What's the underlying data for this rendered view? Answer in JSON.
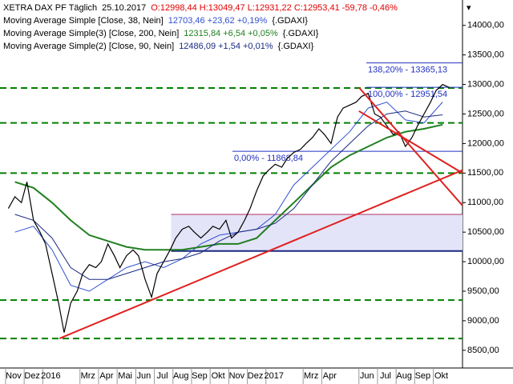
{
  "chart_data": {
    "type": "line",
    "title": "XETRA DAX PF Täglich",
    "date": "25.10.2017",
    "quote": "O:12998,44 H:13049,47 L:12931,22 C:12953,41 -59,78 -0,46%",
    "quote_color": "#e00000",
    "xlim": [
      -0.3,
      24.57
    ],
    "xticks": [
      {
        "value": 0,
        "label": "Nov"
      },
      {
        "value": 1,
        "label": "Dez"
      },
      {
        "value": 2,
        "label": "2016"
      },
      {
        "value": 4,
        "label": "Mrz"
      },
      {
        "value": 5,
        "label": "Apr"
      },
      {
        "value": 6,
        "label": "Mai"
      },
      {
        "value": 7,
        "label": "Jun"
      },
      {
        "value": 8,
        "label": "Jul"
      },
      {
        "value": 9,
        "label": "Aug"
      },
      {
        "value": 10,
        "label": "Sep"
      },
      {
        "value": 11,
        "label": "Okt"
      },
      {
        "value": 12,
        "label": "Nov"
      },
      {
        "value": 13,
        "label": "Dez"
      },
      {
        "value": 14,
        "label": "2017"
      },
      {
        "value": 16,
        "label": "Mrz"
      },
      {
        "value": 17,
        "label": "Apr"
      },
      {
        "value": 19,
        "label": "Jun"
      },
      {
        "value": 20,
        "label": "Jul"
      },
      {
        "value": 21,
        "label": "Aug"
      },
      {
        "value": 22,
        "label": "Sep"
      },
      {
        "value": 23,
        "label": "Okt"
      }
    ],
    "ylim": [
      8200,
      14430
    ],
    "yticks": [
      {
        "value": 8500,
        "label": "8500,00"
      },
      {
        "value": 9000,
        "label": "9000,00"
      },
      {
        "value": 9500,
        "label": "9500,00"
      },
      {
        "value": 10000,
        "label": "10000,00"
      },
      {
        "value": 10500,
        "label": "10500,00"
      },
      {
        "value": 11000,
        "label": "11000,00"
      },
      {
        "value": 11500,
        "label": "11500,00"
      },
      {
        "value": 12000,
        "label": "12000,00"
      },
      {
        "value": 12500,
        "label": "12500,00"
      },
      {
        "value": 13000,
        "label": "13000,00"
      },
      {
        "value": 13500,
        "label": "13500,00"
      },
      {
        "value": 14000,
        "label": "14000,00"
      }
    ],
    "price": {
      "color": "#000000",
      "x": [
        0.15,
        0.5,
        0.85,
        1.15,
        1.5,
        1.85,
        2.15,
        2.5,
        2.85,
        3.15,
        3.5,
        3.85,
        4.15,
        4.5,
        4.85,
        5.15,
        5.5,
        5.85,
        6.15,
        6.5,
        6.85,
        7.15,
        7.5,
        7.85,
        8.15,
        8.5,
        8.85,
        9.15,
        9.5,
        9.85,
        10.15,
        10.5,
        10.85,
        11.15,
        11.5,
        11.85,
        12.15,
        12.5,
        12.85,
        13.15,
        13.5,
        13.85,
        14.15,
        14.5,
        14.85,
        15.15,
        15.5,
        15.85,
        16.15,
        16.5,
        16.85,
        17.15,
        17.5,
        17.85,
        18.15,
        18.5,
        18.85,
        19.15,
        19.5,
        19.85,
        20.15,
        20.5,
        20.85,
        21.15,
        21.5,
        21.85,
        22.15,
        22.5,
        22.85,
        23.15,
        23.5,
        23.85
      ],
      "values": [
        10900,
        11100,
        11000,
        11350,
        10700,
        10500,
        10300,
        9800,
        9300,
        8800,
        9300,
        9500,
        9800,
        9950,
        9900,
        10000,
        10300,
        10100,
        9900,
        10100,
        10200,
        10100,
        9700,
        9400,
        9800,
        10000,
        10200,
        10400,
        10550,
        10600,
        10500,
        10400,
        10500,
        10600,
        10550,
        10700,
        10400,
        10500,
        10700,
        10900,
        11200,
        11450,
        11550,
        11650,
        11600,
        11750,
        11850,
        11900,
        12000,
        12100,
        12250,
        12150,
        12000,
        12450,
        12600,
        12650,
        12700,
        12800,
        12850,
        12500,
        12450,
        12300,
        12150,
        12200,
        11950,
        12100,
        12300,
        12500,
        12700,
        12900,
        13000,
        12950
      ]
    },
    "ma_x": [
      0.5,
      1.5,
      2.5,
      3.5,
      4.5,
      5.5,
      6.5,
      7.5,
      8.5,
      9.5,
      10.5,
      11.5,
      12.5,
      13.5,
      14.5,
      15.5,
      16.5,
      17.5,
      18.5,
      19.5,
      20.5,
      21.5,
      22.5,
      23.5
    ],
    "series": [
      {
        "name": "Moving Average Simple [Close, 38, Nein]",
        "value_label": "12703,46 +23,62 +0,19%",
        "suffix": "{.GDAXI}",
        "color": "#3050d0",
        "width": 1,
        "values": [
          10500,
          10600,
          10200,
          9600,
          9500,
          9700,
          9900,
          10000,
          9900,
          10050,
          10300,
          10450,
          10500,
          10550,
          10800,
          11300,
          11600,
          11900,
          12200,
          12600,
          12700,
          12400,
          12350,
          12703
        ]
      },
      {
        "name": "Moving Average Simple(3) [Close, 200, Nein]",
        "value_label": "12315,84 +6,54 +0,05%",
        "suffix": "{.GDAXI}",
        "color": "#208020",
        "width": 2,
        "values": [
          11350,
          11250,
          11000,
          10700,
          10450,
          10350,
          10250,
          10200,
          10200,
          10200,
          10250,
          10300,
          10300,
          10400,
          10700,
          11000,
          11300,
          11600,
          11800,
          11950,
          12100,
          12200,
          12250,
          12320
        ]
      },
      {
        "name": "Moving Average Simple(2) [Close, 90, Nein]",
        "value_label": "12486,09 +1,54 +0,01%",
        "suffix": "{.GDAXI}",
        "color": "#1a2a80",
        "width": 1,
        "values": [
          10800,
          10700,
          10400,
          9900,
          9700,
          9700,
          9800,
          9900,
          10000,
          10050,
          10150,
          10350,
          10500,
          10550,
          10650,
          10900,
          11300,
          11700,
          12000,
          12300,
          12500,
          12550,
          12450,
          12486
        ]
      }
    ],
    "levels": [
      12940,
      12350,
      11500,
      9350,
      8700
    ],
    "level_color": "#008000",
    "trendlines": [
      {
        "x": [
          2.9,
          24.57
        ],
        "y": [
          8700,
          11550
        ]
      },
      {
        "x": [
          19.0,
          24.57
        ],
        "y": [
          12950,
          10950
        ]
      },
      {
        "x": [
          19.0,
          24.57
        ],
        "y": [
          12550,
          11500
        ]
      }
    ],
    "trend_color": "#e02020",
    "fib": [
      {
        "value": 13365.13,
        "label": "138,20% - 13365,13",
        "x": 19.4
      },
      {
        "value": 12951.54,
        "label": "100,00% - 12951,54",
        "x": 19.4
      },
      {
        "value": 11868.84,
        "label": "0,00% - 11868,84",
        "x": 12.2
      }
    ],
    "fib_color": "#2030c0",
    "zone": {
      "x": 8.9,
      "low": 10180,
      "high": 10800,
      "color": "#e4e4f8"
    }
  }
}
